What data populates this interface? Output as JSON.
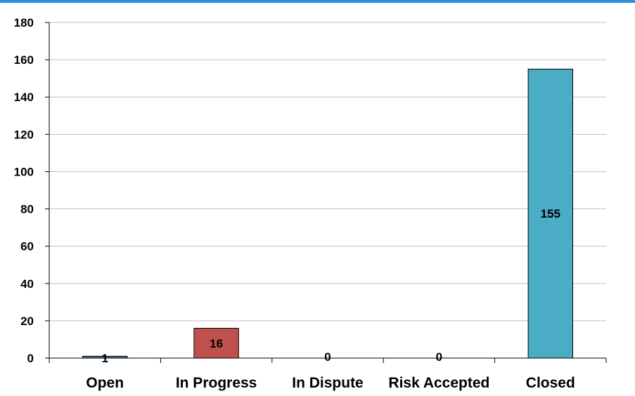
{
  "colors": {
    "top_border": "#2f8fd8",
    "gridline": "#bfbfbf",
    "axis": "#000000"
  },
  "chart_data": {
    "type": "bar",
    "categories": [
      "Open",
      "In Progress",
      "In Dispute",
      "Risk Accepted",
      "Closed"
    ],
    "values": [
      1,
      16,
      0,
      0,
      155
    ],
    "data_labels": [
      "1",
      "16",
      "0",
      "0",
      "155"
    ],
    "bar_colors": [
      "#4a6f91",
      "#c0504d",
      "#4f81bd",
      "#9bbb59",
      "#4bacc6"
    ],
    "title": "",
    "xlabel": "",
    "ylabel": "",
    "ylim": [
      0,
      180
    ],
    "yticks": [
      0,
      20,
      40,
      60,
      80,
      100,
      120,
      140,
      160,
      180
    ],
    "grid": true,
    "legend": "none"
  }
}
